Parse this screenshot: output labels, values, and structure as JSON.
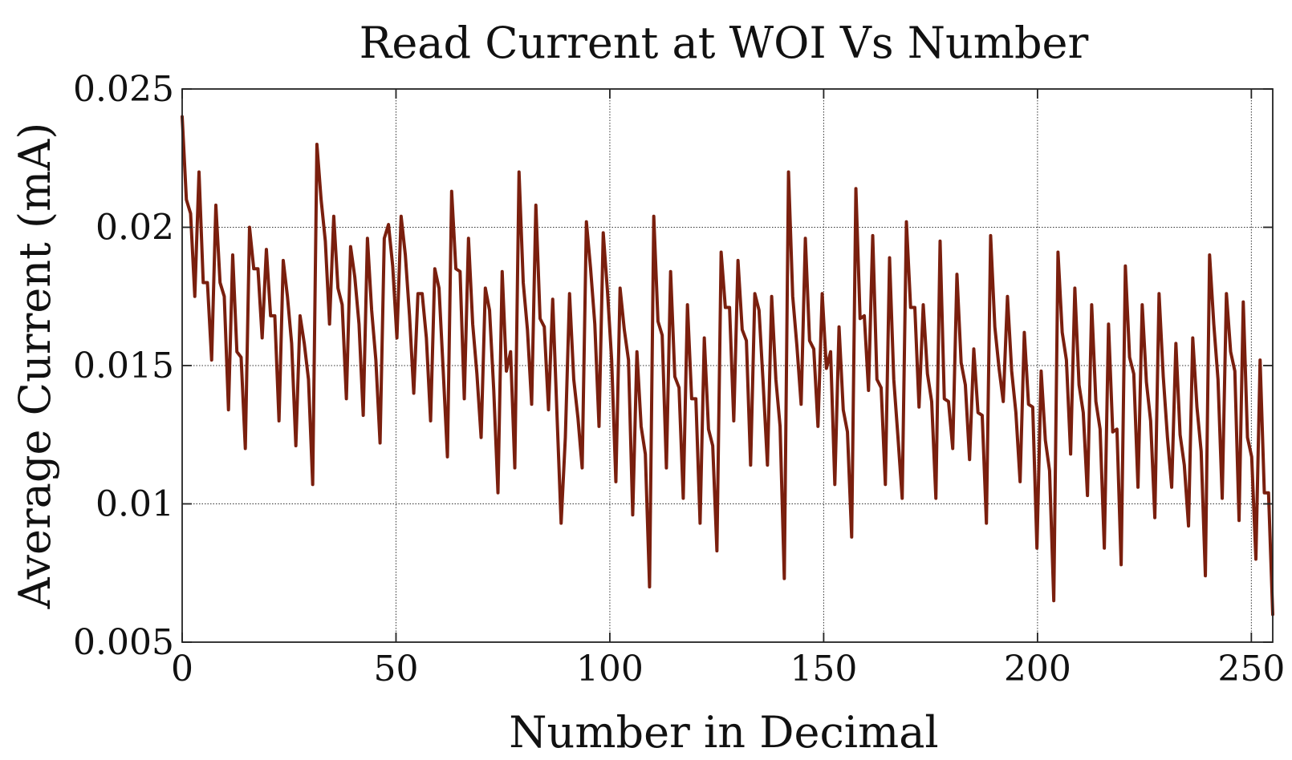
{
  "chart_data": {
    "type": "line",
    "title": "Read Current at WOI Vs Number",
    "xlabel": "Number in Decimal",
    "ylabel": "Average Current (mA)",
    "xlim": [
      0,
      255
    ],
    "ylim": [
      0.005,
      0.025
    ],
    "xticks": [
      0,
      50,
      100,
      150,
      200,
      250
    ],
    "xtick_labels": [
      "0",
      "50",
      "100",
      "150",
      "200",
      "250"
    ],
    "yticks": [
      0.005,
      0.01,
      0.015,
      0.02,
      0.025
    ],
    "ytick_labels": [
      "0.005",
      "0.01",
      "0.015",
      "0.02",
      "0.025"
    ],
    "grid": true,
    "line_color": "#7a1f0e",
    "series": [
      {
        "values": [
          0.024,
          0.021,
          0.0205,
          0.0175,
          0.022,
          0.018,
          0.018,
          0.0152,
          0.0208,
          0.018,
          0.0175,
          0.0134,
          0.019,
          0.0155,
          0.0153,
          0.012,
          0.02,
          0.0185,
          0.0185,
          0.016,
          0.0192,
          0.0168,
          0.0168,
          0.013,
          0.0188,
          0.0175,
          0.0158,
          0.0121,
          0.0168,
          0.0158,
          0.0145,
          0.0107,
          0.023,
          0.021,
          0.0195,
          0.0165,
          0.0204,
          0.0178,
          0.0172,
          0.0138,
          0.0193,
          0.0182,
          0.0165,
          0.0132,
          0.0196,
          0.017,
          0.0152,
          0.0122,
          0.0196,
          0.0201,
          0.0186,
          0.016,
          0.0204,
          0.019,
          0.0168,
          0.014,
          0.0176,
          0.0176,
          0.016,
          0.013,
          0.0185,
          0.0178,
          0.0148,
          0.0117,
          0.0213,
          0.0185,
          0.0184,
          0.0138,
          0.0196,
          0.0165,
          0.0147,
          0.0124,
          0.0178,
          0.017,
          0.0141,
          0.0104,
          0.0184,
          0.0148,
          0.0155,
          0.0113,
          0.022,
          0.018,
          0.0163,
          0.0136,
          0.0208,
          0.0167,
          0.0164,
          0.0134,
          0.0174,
          0.0133,
          0.0093,
          0.0124,
          0.0176,
          0.0145,
          0.0131,
          0.0113,
          0.0202,
          0.0185,
          0.0165,
          0.0128,
          0.0198,
          0.0177,
          0.0152,
          0.0108,
          0.0178,
          0.0163,
          0.0152,
          0.0096,
          0.0155,
          0.0128,
          0.0118,
          0.007,
          0.0204,
          0.0166,
          0.0161,
          0.0113,
          0.0184,
          0.0146,
          0.0142,
          0.0102,
          0.0172,
          0.0138,
          0.0138,
          0.0093,
          0.016,
          0.0127,
          0.0121,
          0.0083,
          0.0191,
          0.0171,
          0.0171,
          0.013,
          0.0188,
          0.0163,
          0.0159,
          0.0114,
          0.0176,
          0.017,
          0.0143,
          0.0114,
          0.0175,
          0.0145,
          0.0128,
          0.0073,
          0.022,
          0.0175,
          0.0157,
          0.0136,
          0.0196,
          0.0159,
          0.0156,
          0.0128,
          0.0176,
          0.0149,
          0.0155,
          0.0107,
          0.0164,
          0.0134,
          0.0126,
          0.0088,
          0.0214,
          0.0167,
          0.0168,
          0.0141,
          0.0197,
          0.0145,
          0.0142,
          0.0107,
          0.0189,
          0.0145,
          0.0124,
          0.0102,
          0.0202,
          0.0171,
          0.0171,
          0.0135,
          0.0172,
          0.0147,
          0.0137,
          0.0102,
          0.0195,
          0.0138,
          0.0137,
          0.012,
          0.0183,
          0.0151,
          0.0143,
          0.0116,
          0.0156,
          0.0133,
          0.0132,
          0.0093,
          0.0197,
          0.0164,
          0.0149,
          0.0137,
          0.0175,
          0.0148,
          0.0133,
          0.0108,
          0.0162,
          0.0136,
          0.0135,
          0.0084,
          0.0148,
          0.0123,
          0.0112,
          0.0065,
          0.0191,
          0.0162,
          0.0152,
          0.0118,
          0.0178,
          0.0143,
          0.0133,
          0.0103,
          0.0172,
          0.0137,
          0.0127,
          0.0084,
          0.0165,
          0.0126,
          0.0127,
          0.0078,
          0.0186,
          0.0153,
          0.0147,
          0.0106,
          0.0172,
          0.0144,
          0.013,
          0.0095,
          0.0176,
          0.0146,
          0.0124,
          0.0106,
          0.0158,
          0.0125,
          0.0114,
          0.0092,
          0.016,
          0.0135,
          0.0119,
          0.0074,
          0.019,
          0.0165,
          0.0145,
          0.0102,
          0.0176,
          0.0155,
          0.0148,
          0.0094,
          0.0173,
          0.0124,
          0.0117,
          0.008,
          0.0152,
          0.0104,
          0.0104,
          0.006
        ]
      }
    ]
  }
}
